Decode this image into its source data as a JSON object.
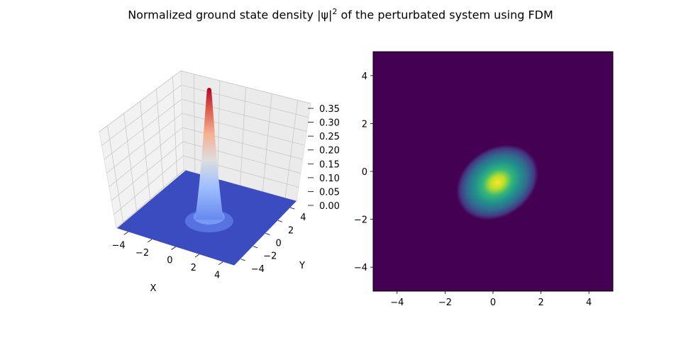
{
  "figure": {
    "title_pre": "Normalized ground state density |ψ|",
    "title_sup": "2",
    "title_post": " of the perturbated system using FDM"
  },
  "chart_data": [
    {
      "type": "surface3d",
      "colormap": "coolwarm",
      "xlabel": "X",
      "ylabel": "Y",
      "zlabel": "",
      "xlim": [
        -5,
        5
      ],
      "ylim": [
        -5,
        5
      ],
      "zlim": [
        0,
        0.35
      ],
      "xticks": [
        "−4",
        "−2",
        "0",
        "2",
        "4"
      ],
      "yticks": [
        "−4",
        "−2",
        "0",
        "2",
        "4"
      ],
      "zticks": [
        "0.00",
        "0.05",
        "0.10",
        "0.15",
        "0.20",
        "0.25",
        "0.30",
        "0.35"
      ],
      "peak": {
        "x": 0.3,
        "y": -0.4,
        "z": 0.32
      },
      "grid": true
    },
    {
      "type": "heatmap",
      "colormap": "viridis",
      "xlim": [
        -5,
        5
      ],
      "ylim": [
        -5,
        5
      ],
      "xticks": [
        "−4",
        "−2",
        "0",
        "2",
        "4"
      ],
      "yticks": [
        "−4",
        "−2",
        "0",
        "2",
        "4"
      ],
      "peak": {
        "x": 0.3,
        "y": -0.4
      },
      "grid": false
    }
  ]
}
